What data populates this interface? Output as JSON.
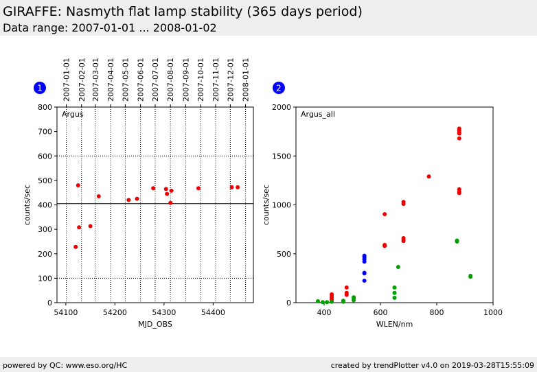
{
  "header": {
    "title": "GIRAFFE: Nasmyth flat lamp stability (365 days period)",
    "subtitle": "Data range: 2007-01-01 ... 2008-01-02"
  },
  "footer": {
    "left": "powered by QC: www.eso.org/HC",
    "right": "created by trendPlotter v4.0 on 2019-03-28T15:55:09"
  },
  "colors": {
    "red": "#ee0000",
    "blue": "#0000ee",
    "green": "#00a000",
    "badge": "#0000ff",
    "header_bg": "#eeeeee"
  },
  "chart_data": [
    {
      "type": "scatter",
      "badge": "1",
      "label": "Argus",
      "xlabel": "MJD_OBS",
      "ylabel": "counts/sec",
      "xlim": [
        54082,
        54482
      ],
      "ylim": [
        0,
        800
      ],
      "xticks": [
        54100,
        54200,
        54300,
        54400
      ],
      "yticks": [
        0,
        100,
        200,
        300,
        400,
        500,
        600,
        700,
        800
      ],
      "top_axis_dates": [
        {
          "label": "2007-01-01",
          "mjd": 54101
        },
        {
          "label": "2007-02-01",
          "mjd": 54132
        },
        {
          "label": "2007-03-01",
          "mjd": 54160
        },
        {
          "label": "2007-04-01",
          "mjd": 54191
        },
        {
          "label": "2007-05-01",
          "mjd": 54221
        },
        {
          "label": "2007-06-01",
          "mjd": 54252
        },
        {
          "label": "2007-07-01",
          "mjd": 54282
        },
        {
          "label": "2007-08-01",
          "mjd": 54313
        },
        {
          "label": "2007-09-01",
          "mjd": 54344
        },
        {
          "label": "2007-10-01",
          "mjd": 54374
        },
        {
          "label": "2007-11-01",
          "mjd": 54405
        },
        {
          "label": "2007-12-01",
          "mjd": 54435
        },
        {
          "label": "2008-01-01",
          "mjd": 54466
        }
      ],
      "reference_lines": [
        {
          "y": 405,
          "style": "solid"
        },
        {
          "y": 600,
          "style": "dotted"
        },
        {
          "y": 100,
          "style": "dotted"
        }
      ],
      "grid": "vertical dotted lines at month boundaries",
      "series": [
        {
          "color": "red",
          "points": [
            [
              54120,
              228
            ],
            [
              54125,
              480
            ],
            [
              54127,
              308
            ],
            [
              54150,
              313
            ],
            [
              54167,
              435
            ],
            [
              54228,
              420
            ],
            [
              54245,
              425
            ],
            [
              54278,
              468
            ],
            [
              54304,
              465
            ],
            [
              54306,
              445
            ],
            [
              54313,
              408
            ],
            [
              54315,
              458
            ],
            [
              54370,
              468
            ],
            [
              54438,
              472
            ],
            [
              54450,
              472
            ]
          ]
        }
      ]
    },
    {
      "type": "scatter",
      "badge": "2",
      "label": "Argus_all",
      "xlabel": "WLEN/nm",
      "ylabel": "counts/sec",
      "xlim": [
        300,
        1000
      ],
      "ylim": [
        0,
        2000
      ],
      "xticks": [
        400,
        600,
        800,
        1000
      ],
      "yticks": [
        0,
        500,
        1000,
        1500,
        2000
      ],
      "series": [
        {
          "color": "red",
          "points": [
            [
              427,
              85
            ],
            [
              427,
              70
            ],
            [
              427,
              50
            ],
            [
              427,
              30
            ],
            [
              480,
              155
            ],
            [
              480,
              100
            ],
            [
              480,
              80
            ],
            [
              615,
              905
            ],
            [
              615,
              590
            ],
            [
              615,
              580
            ],
            [
              682,
              1030
            ],
            [
              682,
              1010
            ],
            [
              682,
              660
            ],
            [
              682,
              645
            ],
            [
              682,
              630
            ],
            [
              772,
              1290
            ],
            [
              880,
              1780
            ],
            [
              880,
              1760
            ],
            [
              880,
              1740
            ],
            [
              880,
              1730
            ],
            [
              880,
              1680
            ],
            [
              880,
              1160
            ],
            [
              880,
              1135
            ],
            [
              880,
              1120
            ]
          ]
        },
        {
          "color": "blue",
          "points": [
            [
              543,
              480
            ],
            [
              543,
              465
            ],
            [
              543,
              445
            ],
            [
              543,
              420
            ],
            [
              543,
              305
            ],
            [
              543,
              300
            ],
            [
              543,
              225
            ]
          ]
        },
        {
          "color": "green",
          "points": [
            [
              378,
              15
            ],
            [
              395,
              5
            ],
            [
              410,
              5
            ],
            [
              427,
              10
            ],
            [
              468,
              20
            ],
            [
              468,
              10
            ],
            [
              505,
              55
            ],
            [
              505,
              40
            ],
            [
              505,
              25
            ],
            [
              650,
              155
            ],
            [
              650,
              100
            ],
            [
              650,
              50
            ],
            [
              663,
              365
            ],
            [
              872,
              635
            ],
            [
              872,
              625
            ],
            [
              920,
              275
            ],
            [
              920,
              265
            ]
          ]
        }
      ]
    }
  ]
}
